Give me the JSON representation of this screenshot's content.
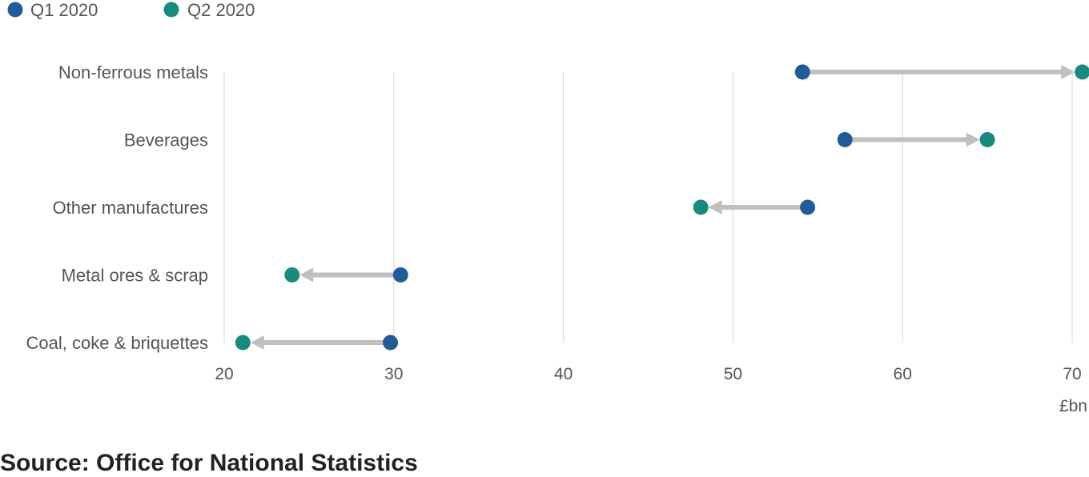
{
  "chart_data": {
    "type": "dumbbell",
    "series": [
      {
        "name": "Q1 2020",
        "color": "#1F5C99"
      },
      {
        "name": "Q2 2020",
        "color": "#168C7E"
      }
    ],
    "categories": [
      {
        "label": "Non-ferrous metals",
        "q1": 54.1,
        "q2": 70.6
      },
      {
        "label": "Beverages",
        "q1": 56.6,
        "q2": 65.0
      },
      {
        "label": "Other manufactures",
        "q1": 54.4,
        "q2": 48.1
      },
      {
        "label": "Metal ores & scrap",
        "q1": 30.4,
        "q2": 24.0
      },
      {
        "label": "Coal, coke & briquettes",
        "q1": 29.8,
        "q2": 21.1
      }
    ],
    "x_ticks": [
      20,
      30,
      40,
      50,
      60,
      70
    ],
    "xlim": [
      20,
      70
    ],
    "xlabel": "£bn",
    "grid": "vertical",
    "legend": "top-left",
    "arrow_color": "#C0C0C0"
  },
  "source": "Source: Office for National Statistics"
}
